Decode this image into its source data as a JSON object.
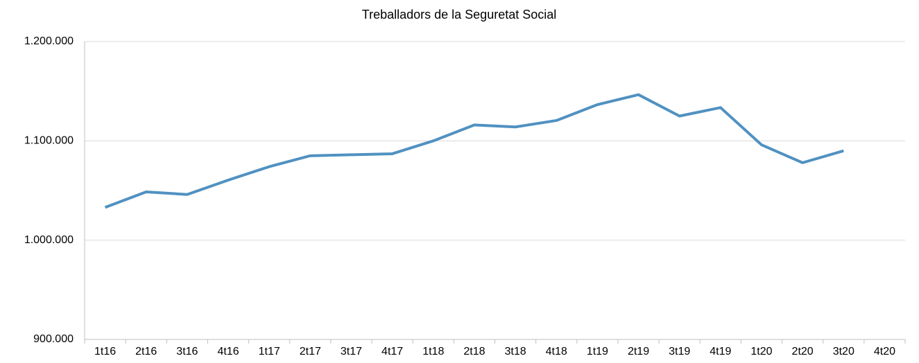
{
  "chart_data": {
    "type": "line",
    "title": "Treballadors de la Seguretat Social",
    "categories": [
      "1t16",
      "2t16",
      "3t16",
      "4t16",
      "1t17",
      "2t17",
      "3t17",
      "4t17",
      "1t18",
      "2t18",
      "3t18",
      "4t18",
      "1t19",
      "2t19",
      "3t19",
      "4t19",
      "1t20",
      "2t20",
      "3t20",
      "4t20"
    ],
    "series": [
      {
        "name": "Treballadors",
        "color": "#5091c1",
        "values": [
          1033000,
          1048600,
          1046000,
          1060500,
          1074000,
          1085000,
          1086000,
          1087000,
          1100000,
          1116000,
          1114000,
          1120500,
          1136500,
          1146500,
          1125000,
          1133500,
          1096000,
          1078000,
          1090000,
          null
        ]
      }
    ],
    "ylim": [
      900000,
      1200000
    ],
    "yticks": [
      {
        "value": 900000,
        "label": "900.000"
      },
      {
        "value": 1000000,
        "label": "1.000.000"
      },
      {
        "value": 1100000,
        "label": "1.100.000"
      },
      {
        "value": 1200000,
        "label": "1.200.000"
      }
    ],
    "grid": true
  }
}
